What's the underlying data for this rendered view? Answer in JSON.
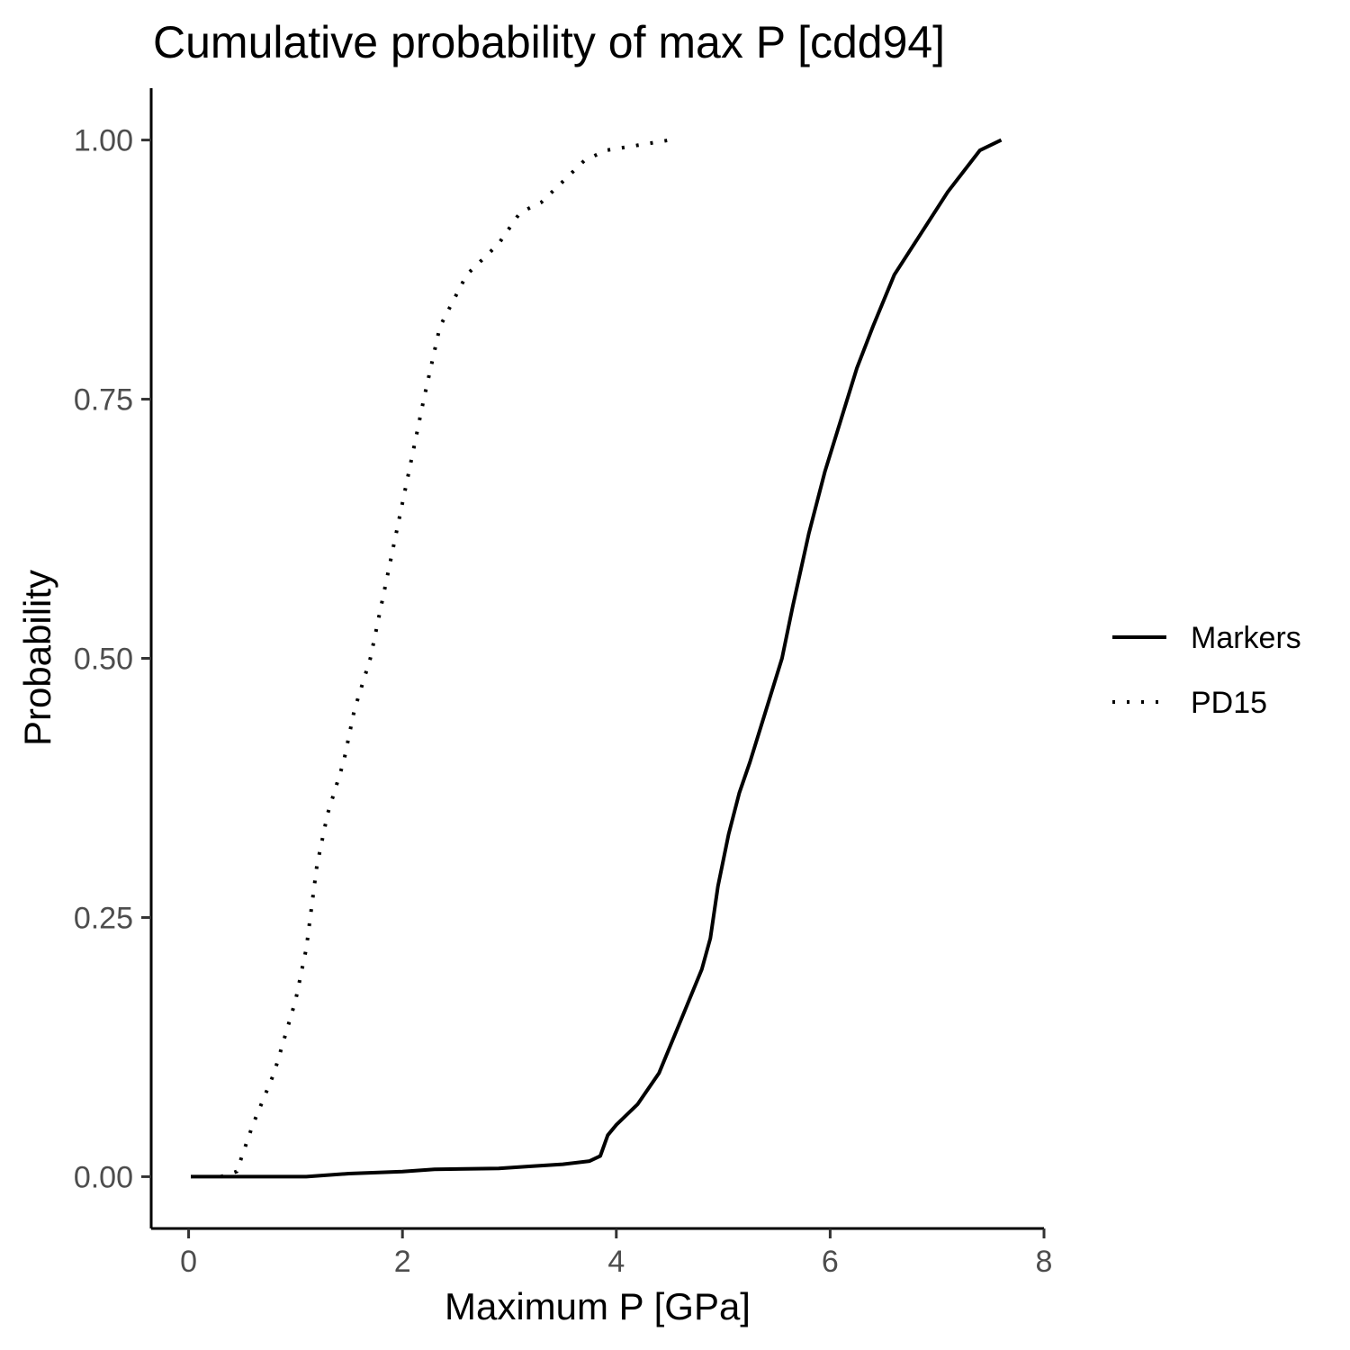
{
  "chart_data": {
    "type": "line",
    "title": "Cumulative probability of max P [cdd94]",
    "xlabel": "Maximum P [GPa]",
    "ylabel": "Probability",
    "xlim": [
      -0.35,
      8.0
    ],
    "ylim": [
      -0.05,
      1.05
    ],
    "x_ticks": [
      0,
      2,
      4,
      6,
      8
    ],
    "x_tick_labels": [
      "0",
      "2",
      "4",
      "6",
      "8"
    ],
    "y_ticks": [
      0,
      0.25,
      0.5,
      0.75,
      1.0
    ],
    "y_tick_labels": [
      "0.00",
      "0.25",
      "0.50",
      "0.75",
      "1.00"
    ],
    "grid": false,
    "legend_position": "right",
    "series": [
      {
        "name": "Markers",
        "line_style": "solid",
        "color": "#000000",
        "x": [
          0.02,
          1.1,
          1.5,
          2.0,
          2.3,
          2.9,
          3.2,
          3.5,
          3.75,
          3.85,
          3.92,
          4.0,
          4.2,
          4.4,
          4.6,
          4.8,
          4.88,
          4.95,
          5.05,
          5.15,
          5.25,
          5.4,
          5.55,
          5.65,
          5.8,
          5.95,
          6.1,
          6.25,
          6.4,
          6.6,
          6.85,
          7.1,
          7.4,
          7.6
        ],
        "y": [
          0.0,
          0.0,
          0.003,
          0.005,
          0.007,
          0.008,
          0.01,
          0.012,
          0.015,
          0.02,
          0.04,
          0.05,
          0.07,
          0.1,
          0.15,
          0.2,
          0.23,
          0.28,
          0.33,
          0.37,
          0.4,
          0.45,
          0.5,
          0.55,
          0.62,
          0.68,
          0.73,
          0.78,
          0.82,
          0.87,
          0.91,
          0.95,
          0.99,
          1.0
        ]
      },
      {
        "name": "PD15",
        "line_style": "dotted",
        "color": "#000000",
        "x": [
          0.3,
          0.45,
          0.6,
          0.8,
          1.0,
          1.1,
          1.2,
          1.3,
          1.45,
          1.55,
          1.7,
          1.8,
          1.9,
          2.0,
          2.1,
          2.2,
          2.35,
          2.5,
          2.6,
          2.9,
          3.1,
          3.3,
          3.5,
          3.7,
          3.9,
          4.2,
          4.5
        ],
        "y": [
          0.0,
          0.005,
          0.05,
          0.1,
          0.17,
          0.22,
          0.3,
          0.35,
          0.4,
          0.45,
          0.5,
          0.55,
          0.6,
          0.65,
          0.7,
          0.75,
          0.82,
          0.85,
          0.87,
          0.9,
          0.93,
          0.94,
          0.96,
          0.98,
          0.99,
          0.995,
          1.0
        ]
      }
    ]
  }
}
